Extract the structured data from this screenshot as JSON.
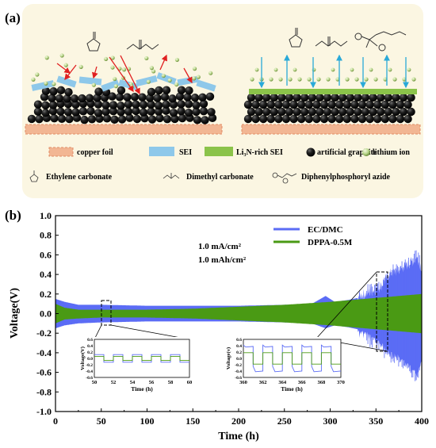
{
  "panel_a": {
    "label": "(a)",
    "legend": {
      "copper_foil": "copper foil",
      "sei": "SEI",
      "li3n_sei": "Li₃N-rich SEI",
      "artificial_graphite": "artificial graphite",
      "lithium_ion": "lithium ion",
      "ethylene_carbonate": "Ethylene carbonate",
      "dimethyl_carbonate": "Dimethyl carbonate",
      "dppa": "Diphenylphosphoryl azide"
    },
    "colors": {
      "background": "#fbf6e2",
      "copper": "#f2b693",
      "sei": "#8ec8ea",
      "li3n_sei": "#8bc34a",
      "graphite": "#1a1a1a",
      "arrow_red": "#e02020",
      "arrow_blue": "#29a9d8"
    }
  },
  "panel_b": {
    "label": "(b)",
    "annotations": [
      "1.0 mA/cm²",
      "1.0 mAh/cm²"
    ],
    "inset1": {
      "ylabel": "Voltage(V)",
      "xlabel": "Time (h)",
      "xticks": [
        "50",
        "52",
        "54",
        "56",
        "58",
        "60"
      ],
      "yticks": [
        "0.6",
        "0.4",
        "0.2",
        "0.0",
        "-0.2",
        "-0.4",
        "-0.6"
      ]
    },
    "inset2": {
      "ylabel": "Voltage(v)",
      "xlabel": "Time (h)",
      "xticks": [
        "360",
        "362",
        "364",
        "366",
        "368",
        "370"
      ],
      "yticks": [
        "0.6",
        "0.4",
        "0.2",
        "0.0",
        "-0.2",
        "-0.4",
        "-0.6"
      ]
    }
  },
  "chart_data": {
    "type": "line",
    "title": "",
    "xlabel": "Time (h)",
    "ylabel": "Voltage(V)",
    "xlim": [
      0,
      400
    ],
    "ylim": [
      -1.0,
      1.0
    ],
    "xticks": [
      0,
      50,
      100,
      150,
      200,
      250,
      300,
      350,
      400
    ],
    "yticks": [
      -1.0,
      -0.8,
      -0.6,
      -0.4,
      -0.2,
      0.0,
      0.2,
      0.4,
      0.6,
      0.8,
      1.0
    ],
    "xtick_labels": [
      "0",
      "50",
      "100",
      "150",
      "200",
      "250",
      "300",
      "350",
      "400"
    ],
    "ytick_labels": [
      "-1.0",
      "-0.8",
      "-0.6",
      "-0.4",
      "-0.2",
      "0.0",
      "0.2",
      "0.4",
      "0.6",
      "0.8",
      "1.0"
    ],
    "legend_position": "top-right",
    "series": [
      {
        "name": "EC/DMC",
        "color": "#5b6cf5",
        "x": [
          0,
          10,
          25,
          50,
          100,
          150,
          200,
          250,
          280,
          295,
          305,
          320,
          340,
          355,
          365,
          375,
          385,
          395,
          400
        ],
        "upper": [
          0.15,
          0.12,
          0.09,
          0.09,
          0.08,
          0.08,
          0.08,
          0.09,
          0.1,
          0.18,
          0.12,
          0.14,
          0.18,
          0.25,
          0.38,
          0.42,
          0.48,
          0.54,
          0.45
        ],
        "lower": [
          -0.15,
          -0.12,
          -0.1,
          -0.09,
          -0.08,
          -0.08,
          -0.08,
          -0.09,
          -0.1,
          -0.15,
          -0.12,
          -0.14,
          -0.18,
          -0.28,
          -0.38,
          -0.42,
          -0.5,
          -0.6,
          -0.45
        ]
      },
      {
        "name": "DPPA-0.5M",
        "color": "#4a9a14",
        "x": [
          0,
          10,
          25,
          50,
          100,
          150,
          200,
          250,
          300,
          350,
          400
        ],
        "upper": [
          0.1,
          0.06,
          0.04,
          0.04,
          0.04,
          0.05,
          0.07,
          0.09,
          0.12,
          0.16,
          0.2
        ],
        "lower": [
          -0.1,
          -0.06,
          -0.05,
          -0.04,
          -0.04,
          -0.05,
          -0.07,
          -0.09,
          -0.12,
          -0.16,
          -0.2
        ]
      }
    ]
  }
}
